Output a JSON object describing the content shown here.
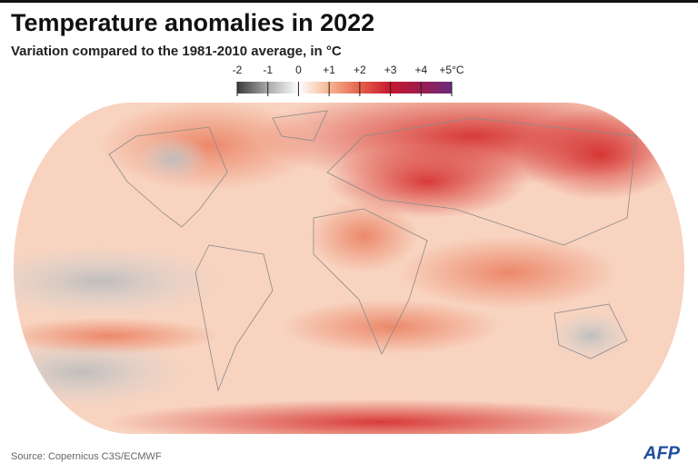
{
  "header": {
    "title": "Temperature anomalies in 2022",
    "subtitle": "Variation compared to the 1981-2010 average, in °C"
  },
  "legend": {
    "range": [
      -2,
      5
    ],
    "ticks": [
      {
        "value": -2,
        "label": "-2"
      },
      {
        "value": -1,
        "label": "-1"
      },
      {
        "value": 0,
        "label": "0"
      },
      {
        "value": 1,
        "label": "+1"
      },
      {
        "value": 2,
        "label": "+2"
      },
      {
        "value": 3,
        "label": "+3"
      },
      {
        "value": 4,
        "label": "+4"
      },
      {
        "value": 5,
        "label": "+5°C"
      }
    ],
    "colors": [
      "#3b3b3b",
      "#a9a9a9",
      "#ffffff",
      "#f6b592",
      "#e6624a",
      "#c8172f",
      "#9c1d4e",
      "#6a2b7c"
    ]
  },
  "footer": {
    "source": "Source: Copernicus C3S/ECMWF",
    "logo": "AFP"
  }
}
